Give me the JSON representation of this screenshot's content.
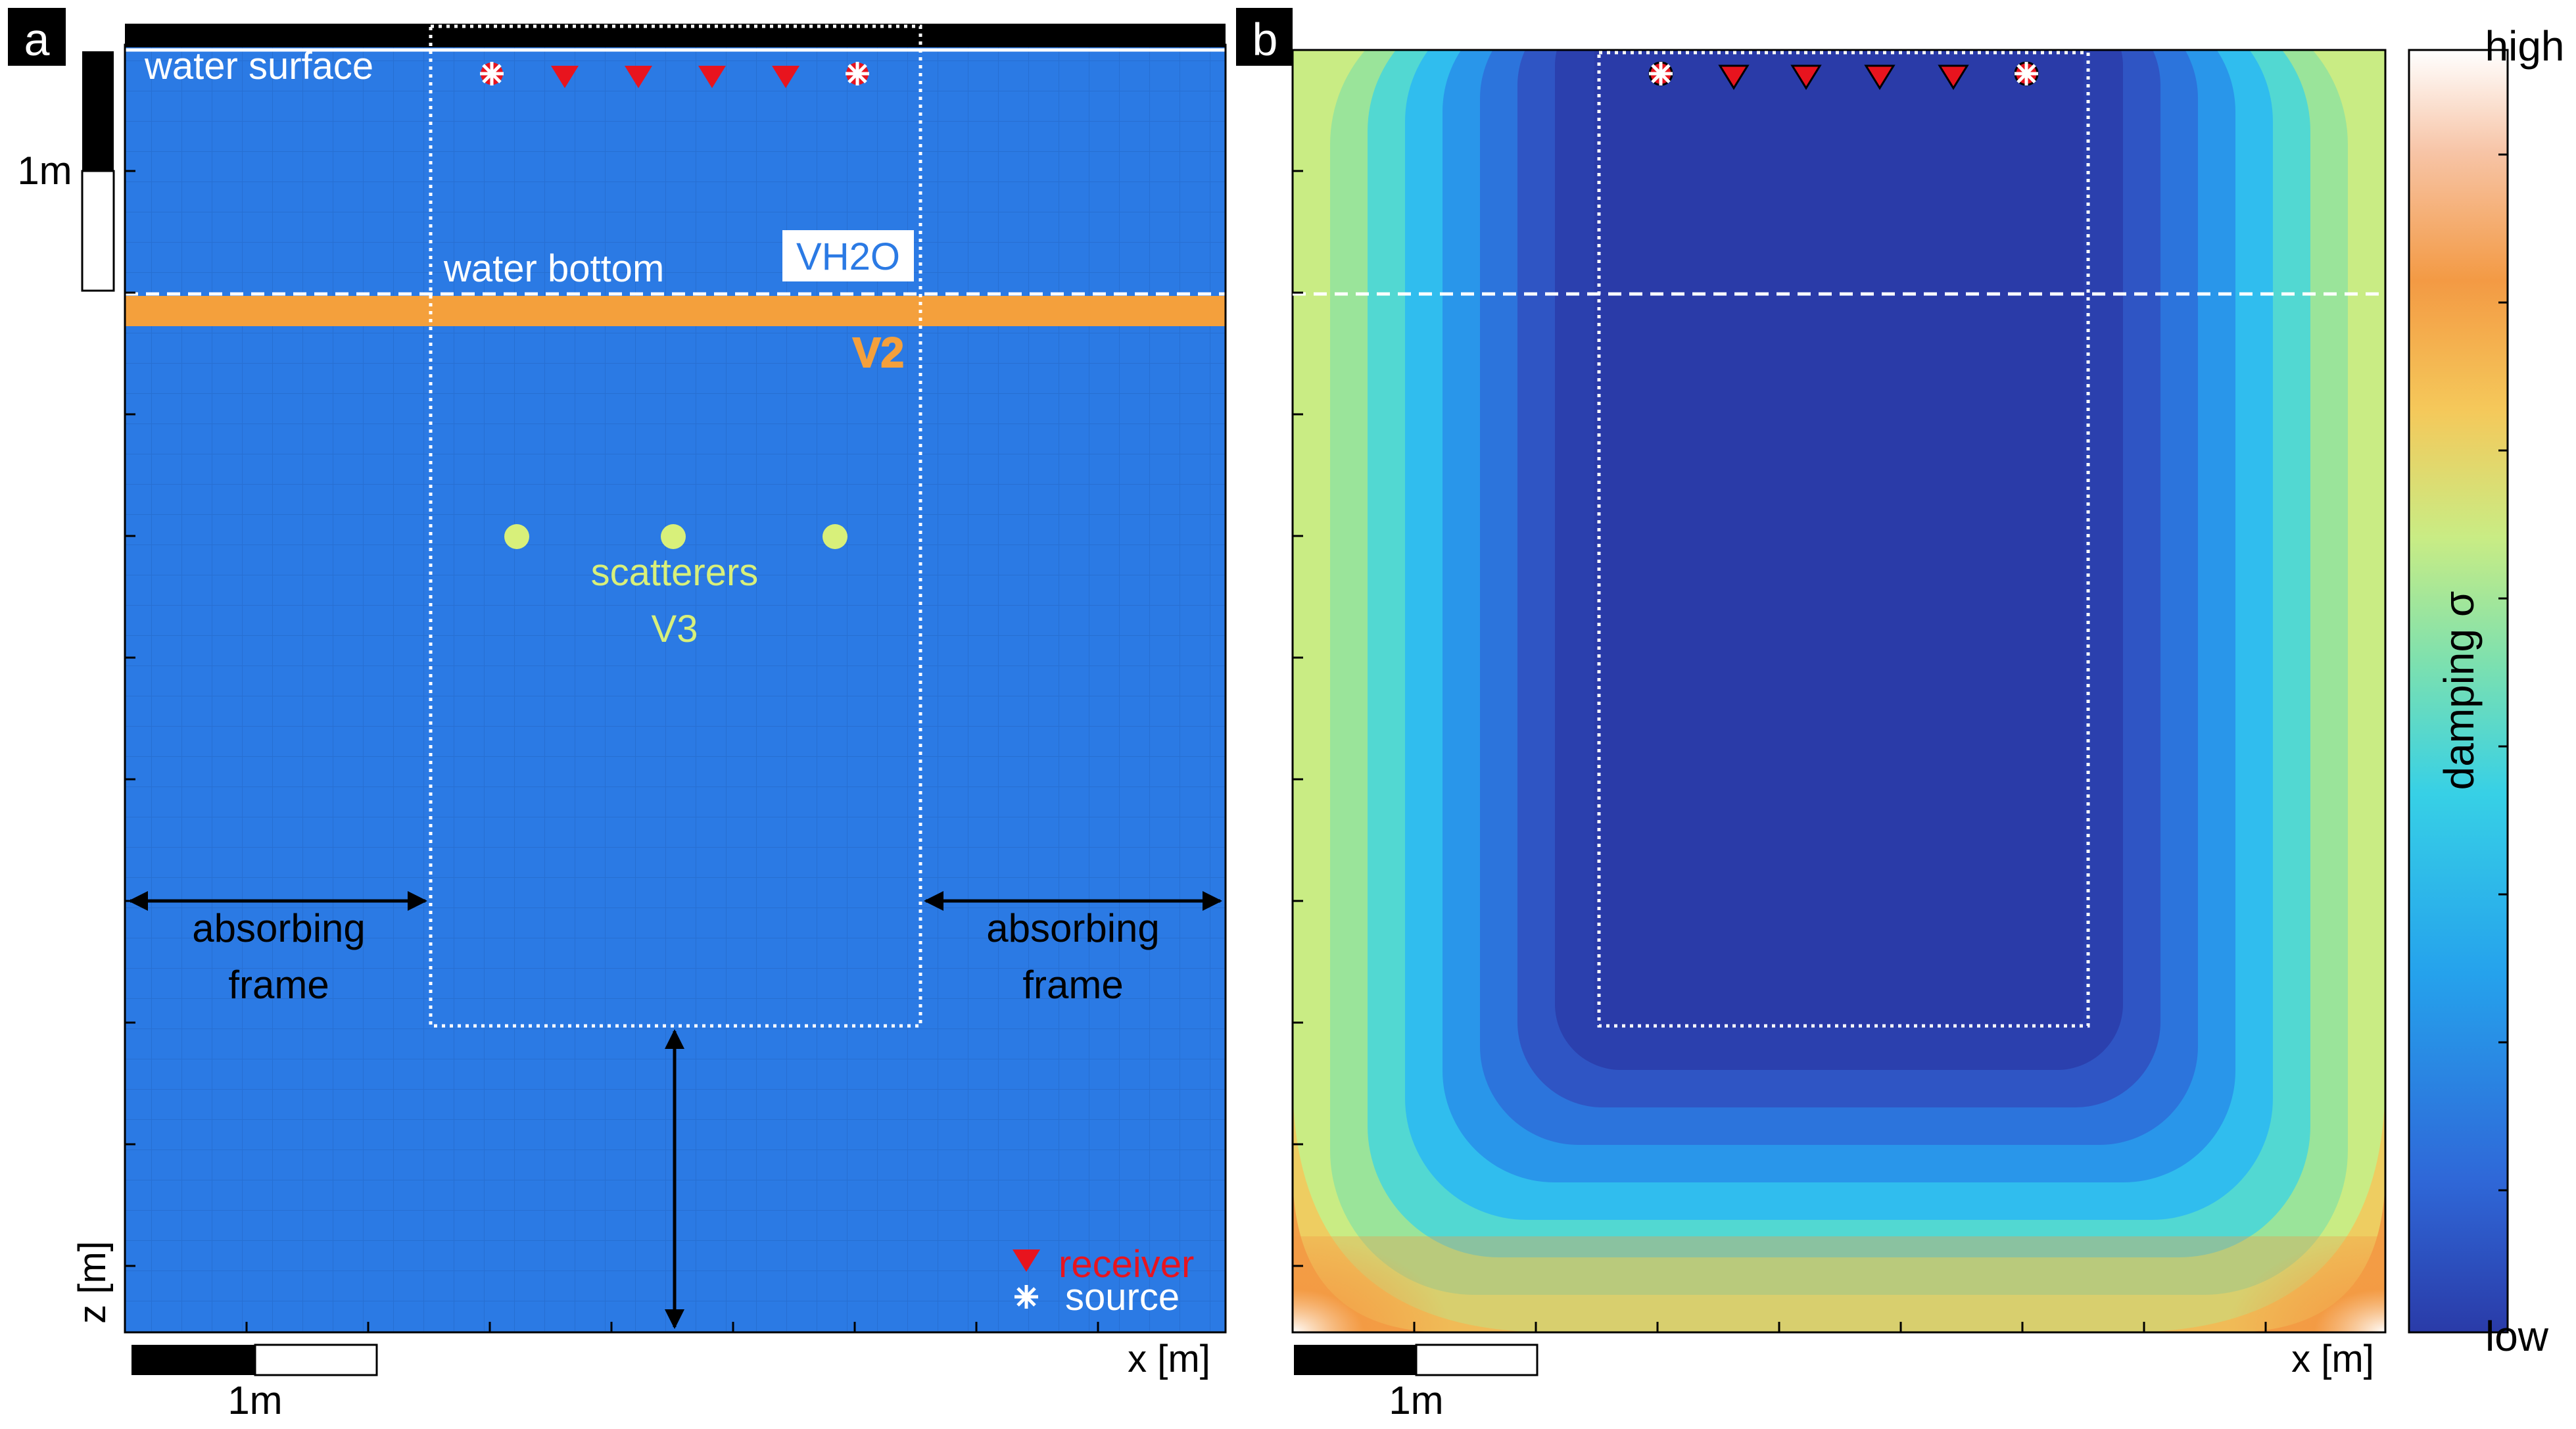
{
  "panel_a": {
    "letter": "a",
    "labels": {
      "water_surface": "water surface",
      "water_bottom": "water bottom",
      "vh2o": "VH2O",
      "v2": "V2",
      "scatterers": "scatterers",
      "v3": "V3",
      "absorbing_left_1": "absorbing",
      "absorbing_left_2": "frame",
      "absorbing_right_1": "absorbing",
      "absorbing_right_2": "frame",
      "scale_vertical": "1m",
      "scale_horizontal": "1m",
      "xlabel": "x [m]",
      "ylabel": "z [m]",
      "legend_receiver": "receiver",
      "legend_source": "source"
    },
    "colors": {
      "water": "#2b7ae4",
      "layer": "#f4a03c",
      "scatterer": "#d8f07a",
      "receiver": "#e8141e",
      "grid": "#2466c4"
    }
  },
  "panel_b": {
    "letter": "b",
    "labels": {
      "scale_horizontal": "1m",
      "xlabel": "x [m]",
      "colorbar_high": "high",
      "colorbar_low": "low",
      "colorbar_label": "damping σ"
    },
    "colormap": [
      "#2a3ba8",
      "#2f68d8",
      "#25a2ec",
      "#37d0e6",
      "#7be0b0",
      "#c9ec84",
      "#f5c85a",
      "#f39a44",
      "#f7c4a6",
      "#ffffff"
    ]
  }
}
